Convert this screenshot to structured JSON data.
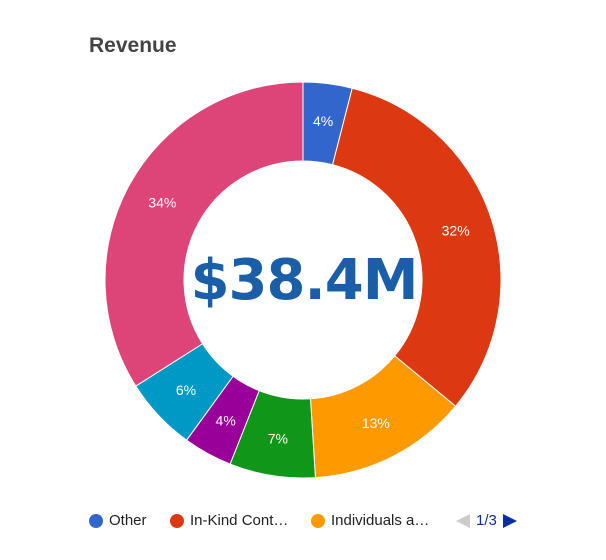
{
  "chart_data": {
    "type": "pie",
    "title": "Revenue",
    "center_label": "$38.4M",
    "donut": true,
    "slices": [
      {
        "name": "Other",
        "value": 4,
        "label": "4%",
        "color": "#3366cc"
      },
      {
        "name": "In-Kind Contributions",
        "value": 32,
        "label": "32%",
        "color": "#dc3912"
      },
      {
        "name": "Individuals and Businesses",
        "value": 13,
        "label": "13%",
        "color": "#ff9900"
      },
      {
        "name": "",
        "value": 7,
        "label": "7%",
        "color": "#109618"
      },
      {
        "name": "",
        "value": 4,
        "label": "4%",
        "color": "#990099"
      },
      {
        "name": "",
        "value": 6,
        "label": "6%",
        "color": "#0099c6"
      },
      {
        "name": "",
        "value": 34,
        "label": "34%",
        "color": "#dd4477"
      }
    ],
    "legend": {
      "position": "bottom",
      "items": [
        {
          "label": "Other",
          "color": "#3366cc"
        },
        {
          "label": "In-Kind Cont…",
          "color": "#dc3912"
        },
        {
          "label": "Individuals a…",
          "color": "#ff9900"
        }
      ],
      "page": "1/3"
    }
  }
}
